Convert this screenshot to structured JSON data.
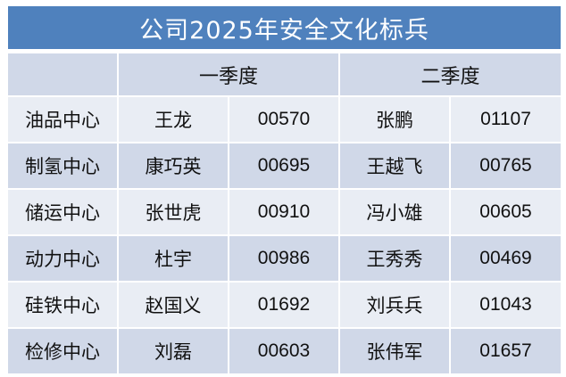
{
  "title": "公司2025年安全文化标兵",
  "header": {
    "department": "",
    "q1": "一季度",
    "q2": "二季度"
  },
  "colors": {
    "title_bg": "#4f81bd",
    "row_dark": "#d0d8e8",
    "row_light": "#e9edf4"
  },
  "rows": [
    {
      "department": "油品中心",
      "q1_name": "王龙",
      "q1_id": "00570",
      "q2_name": "张鹏",
      "q2_id": "01107"
    },
    {
      "department": "制氢中心",
      "q1_name": "康巧英",
      "q1_id": "00695",
      "q2_name": "王越飞",
      "q2_id": "00765"
    },
    {
      "department": "储运中心",
      "q1_name": "张世虎",
      "q1_id": "00910",
      "q2_name": "冯小雄",
      "q2_id": "00605"
    },
    {
      "department": "动力中心",
      "q1_name": "杜宇",
      "q1_id": "00986",
      "q2_name": "王秀秀",
      "q2_id": "00469"
    },
    {
      "department": "硅铁中心",
      "q1_name": "赵国义",
      "q1_id": "01692",
      "q2_name": "刘兵兵",
      "q2_id": "01043"
    },
    {
      "department": "检修中心",
      "q1_name": "刘磊",
      "q1_id": "00603",
      "q2_name": "张伟军",
      "q2_id": "01657"
    }
  ]
}
